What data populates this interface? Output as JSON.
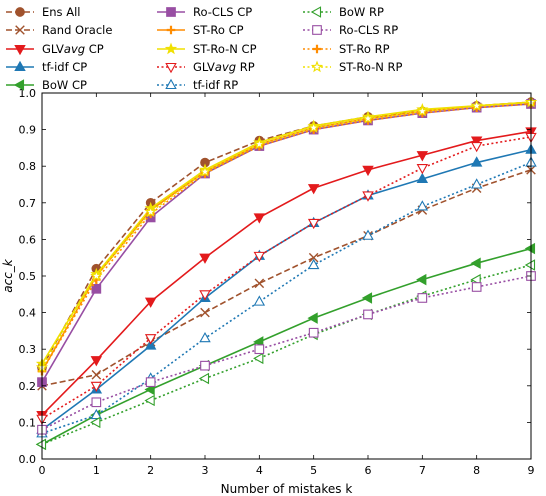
{
  "chart_data": {
    "type": "line",
    "title": "",
    "xlabel": "Number of mistakes k",
    "ylabel": "acc_k",
    "xlim": [
      0,
      9
    ],
    "ylim": [
      0.0,
      1.0
    ],
    "x": [
      0,
      1,
      2,
      3,
      4,
      5,
      6,
      7,
      8,
      9
    ],
    "xticks": [
      "0",
      "1",
      "2",
      "3",
      "4",
      "5",
      "6",
      "7",
      "8",
      "9"
    ],
    "yticks": [
      "0.0",
      "0.1",
      "0.2",
      "0.3",
      "0.4",
      "0.5",
      "0.6",
      "0.7",
      "0.8",
      "0.9",
      "1.0"
    ],
    "grid": false,
    "legend_position": "top",
    "series": [
      {
        "name": "Ens All",
        "color": "#a0522d",
        "dash": "dashed",
        "marker": "circle",
        "fill": true,
        "values": [
          0.25,
          0.52,
          0.7,
          0.81,
          0.87,
          0.91,
          0.935,
          0.95,
          0.965,
          0.975
        ]
      },
      {
        "name": "Rand Oracle",
        "color": "#a0522d",
        "dash": "dashed",
        "marker": "x",
        "fill": false,
        "values": [
          0.2,
          0.23,
          0.32,
          0.4,
          0.48,
          0.55,
          0.61,
          0.68,
          0.74,
          0.79
        ]
      },
      {
        "name": "GLVavg CP",
        "color": "#e31a1c",
        "dash": "solid",
        "marker": "tri-down",
        "fill": true,
        "values": [
          0.12,
          0.27,
          0.43,
          0.55,
          0.66,
          0.74,
          0.79,
          0.83,
          0.87,
          0.895
        ]
      },
      {
        "name": "tf-idf CP",
        "color": "#1f78b4",
        "dash": "solid",
        "marker": "tri-up",
        "fill": true,
        "values": [
          0.08,
          0.19,
          0.31,
          0.44,
          0.555,
          0.645,
          0.72,
          0.765,
          0.81,
          0.845
        ]
      },
      {
        "name": "BoW CP",
        "color": "#33a02c",
        "dash": "solid",
        "marker": "tri-left",
        "fill": true,
        "values": [
          0.04,
          0.12,
          0.19,
          0.255,
          0.32,
          0.385,
          0.44,
          0.49,
          0.535,
          0.575
        ]
      },
      {
        "name": "Ro-CLS CP",
        "color": "#984ea3",
        "dash": "solid",
        "marker": "square",
        "fill": true,
        "values": [
          0.21,
          0.465,
          0.66,
          0.78,
          0.855,
          0.9,
          0.925,
          0.945,
          0.96,
          0.97
        ]
      },
      {
        "name": "ST-Ro CP",
        "color": "#ff8c00",
        "dash": "solid",
        "marker": "plus",
        "fill": true,
        "values": [
          0.24,
          0.5,
          0.68,
          0.785,
          0.86,
          0.905,
          0.93,
          0.95,
          0.965,
          0.975
        ]
      },
      {
        "name": "ST-Ro-N CP",
        "color": "#f0e000",
        "dash": "solid",
        "marker": "star",
        "fill": true,
        "values": [
          0.26,
          0.505,
          0.685,
          0.79,
          0.865,
          0.91,
          0.935,
          0.955,
          0.965,
          0.975
        ]
      },
      {
        "name": "GLVavg RP",
        "color": "#e31a1c",
        "dash": "dotted",
        "marker": "tri-down",
        "fill": false,
        "values": [
          0.11,
          0.2,
          0.33,
          0.45,
          0.555,
          0.645,
          0.72,
          0.795,
          0.855,
          0.88
        ]
      },
      {
        "name": "tf-idf RP",
        "color": "#1f78b4",
        "dash": "dotted",
        "marker": "tri-up",
        "fill": false,
        "values": [
          0.07,
          0.12,
          0.22,
          0.33,
          0.43,
          0.53,
          0.61,
          0.69,
          0.75,
          0.81
        ]
      },
      {
        "name": "BoW RP",
        "color": "#33a02c",
        "dash": "dotted",
        "marker": "tri-left",
        "fill": false,
        "values": [
          0.04,
          0.1,
          0.16,
          0.22,
          0.275,
          0.34,
          0.395,
          0.445,
          0.49,
          0.53
        ]
      },
      {
        "name": "Ro-CLS RP",
        "color": "#984ea3",
        "dash": "dotted",
        "marker": "square",
        "fill": false,
        "values": [
          0.08,
          0.155,
          0.21,
          0.255,
          0.3,
          0.345,
          0.395,
          0.44,
          0.47,
          0.5
        ]
      },
      {
        "name": "ST-Ro RP",
        "color": "#ff8c00",
        "dash": "dotted",
        "marker": "plus",
        "fill": false,
        "values": [
          0.24,
          0.49,
          0.67,
          0.78,
          0.855,
          0.9,
          0.925,
          0.945,
          0.96,
          0.97
        ]
      },
      {
        "name": "ST-Ro-N RP",
        "color": "#f0e000",
        "dash": "dotted",
        "marker": "star",
        "fill": false,
        "values": [
          0.25,
          0.5,
          0.675,
          0.785,
          0.86,
          0.905,
          0.93,
          0.95,
          0.965,
          0.975
        ]
      }
    ]
  }
}
